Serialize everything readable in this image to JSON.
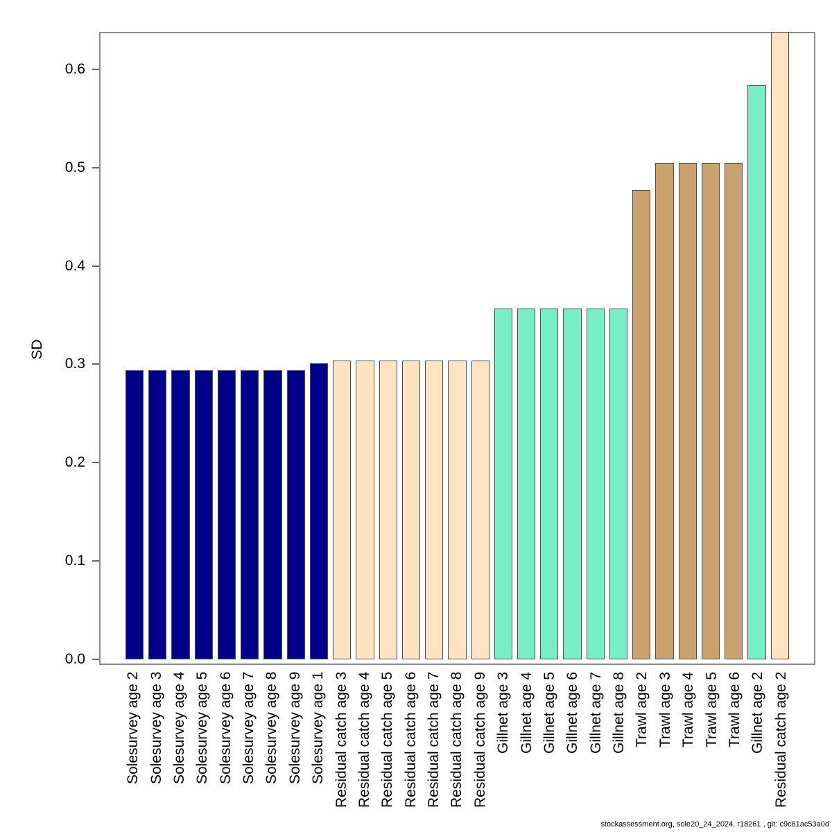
{
  "figure": {
    "ylabel": "SD",
    "footer": "stockassessment.org, sole20_24_2024, r18261 , git: c9c81ac53a0d"
  },
  "chart_data": {
    "type": "bar",
    "title": "",
    "xlabel": "",
    "ylabel": "SD",
    "ylim": [
      0,
      0.638
    ],
    "yticks": [
      0.0,
      0.1,
      0.2,
      0.3,
      0.4,
      0.5,
      0.6
    ],
    "grid": false,
    "legend": "none",
    "bar_border_color": "#4d4d4d",
    "box_color": "#8a8a8a",
    "palette": {
      "Solesurvey": "#00008B",
      "Residual catch": "#FFE4C4",
      "Gillnet": "#76EEC6",
      "Trawl": "#C9A26E"
    },
    "bars": [
      {
        "label": "Solesurvey age 2",
        "group": "Solesurvey",
        "value": 0.294
      },
      {
        "label": "Solesurvey age 3",
        "group": "Solesurvey",
        "value": 0.294
      },
      {
        "label": "Solesurvey age 4",
        "group": "Solesurvey",
        "value": 0.294
      },
      {
        "label": "Solesurvey age 5",
        "group": "Solesurvey",
        "value": 0.294
      },
      {
        "label": "Solesurvey age 6",
        "group": "Solesurvey",
        "value": 0.294
      },
      {
        "label": "Solesurvey age 7",
        "group": "Solesurvey",
        "value": 0.294
      },
      {
        "label": "Solesurvey age 8",
        "group": "Solesurvey",
        "value": 0.294
      },
      {
        "label": "Solesurvey age 9",
        "group": "Solesurvey",
        "value": 0.294
      },
      {
        "label": "Solesurvey age 1",
        "group": "Solesurvey",
        "value": 0.301
      },
      {
        "label": "Residual catch age 3",
        "group": "Residual catch",
        "value": 0.304
      },
      {
        "label": "Residual catch age 4",
        "group": "Residual catch",
        "value": 0.304
      },
      {
        "label": "Residual catch age 5",
        "group": "Residual catch",
        "value": 0.304
      },
      {
        "label": "Residual catch age 6",
        "group": "Residual catch",
        "value": 0.304
      },
      {
        "label": "Residual catch age 7",
        "group": "Residual catch",
        "value": 0.304
      },
      {
        "label": "Residual catch age 8",
        "group": "Residual catch",
        "value": 0.304
      },
      {
        "label": "Residual catch age 9",
        "group": "Residual catch",
        "value": 0.304
      },
      {
        "label": "Gillnet age 3",
        "group": "Gillnet",
        "value": 0.357
      },
      {
        "label": "Gillnet age 4",
        "group": "Gillnet",
        "value": 0.357
      },
      {
        "label": "Gillnet age 5",
        "group": "Gillnet",
        "value": 0.357
      },
      {
        "label": "Gillnet age 6",
        "group": "Gillnet",
        "value": 0.357
      },
      {
        "label": "Gillnet age 7",
        "group": "Gillnet",
        "value": 0.357
      },
      {
        "label": "Gillnet age 8",
        "group": "Gillnet",
        "value": 0.357
      },
      {
        "label": "Trawl age 2",
        "group": "Trawl",
        "value": 0.477
      },
      {
        "label": "Trawl age 3",
        "group": "Trawl",
        "value": 0.505
      },
      {
        "label": "Trawl age 4",
        "group": "Trawl",
        "value": 0.505
      },
      {
        "label": "Trawl age 5",
        "group": "Trawl",
        "value": 0.505
      },
      {
        "label": "Trawl age 6",
        "group": "Trawl",
        "value": 0.505
      },
      {
        "label": "Gillnet age 2",
        "group": "Gillnet",
        "value": 0.584
      },
      {
        "label": "Residual catch age 2",
        "group": "Residual catch",
        "value": 0.638
      }
    ]
  }
}
